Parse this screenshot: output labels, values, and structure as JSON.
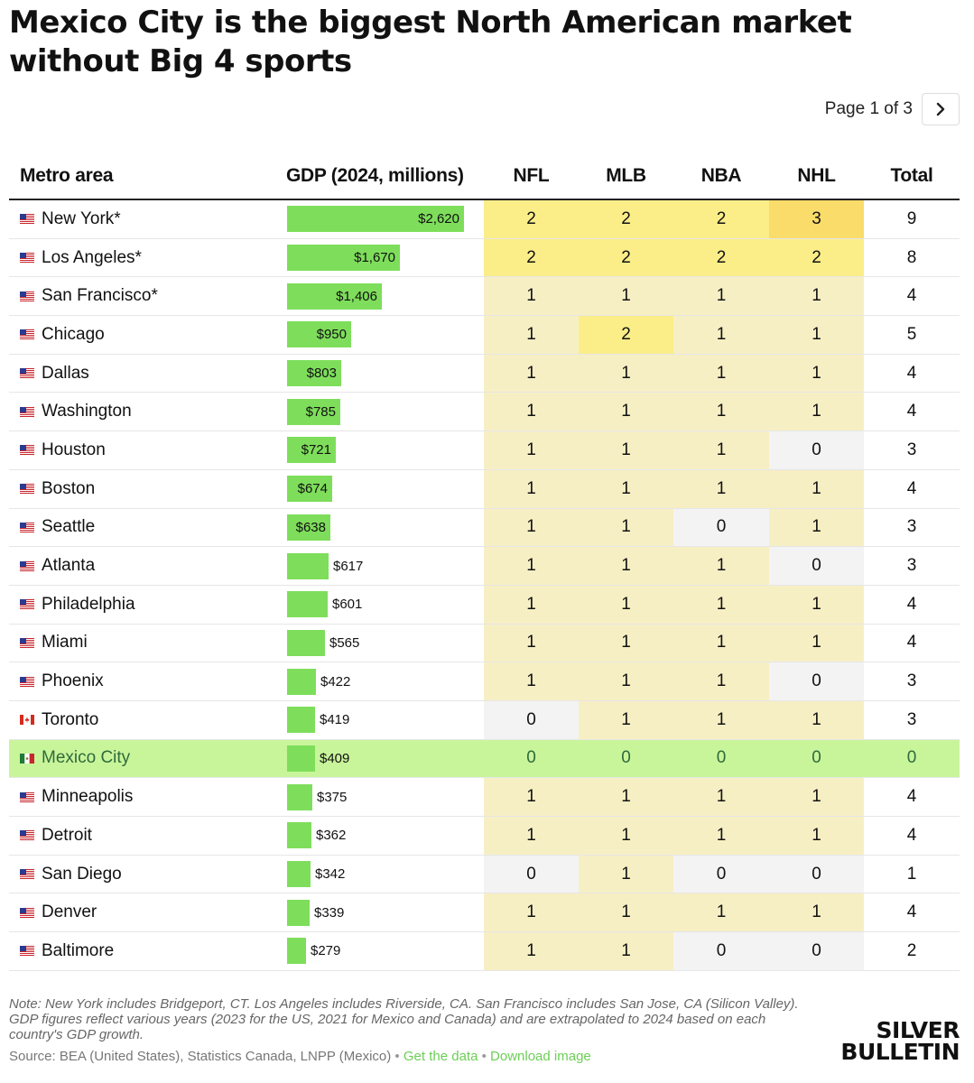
{
  "title": "Mexico City is the biggest North American market without Big 4 sports",
  "pager": {
    "text": "Page 1 of 3",
    "next_icon": "chevron-right-icon"
  },
  "colors": {
    "bar": "#7ede5b",
    "highlight_row": "#c9f59a",
    "zero": "#f3f3f3",
    "one": "#f7efc4",
    "two": "#fbee88",
    "three": "#f9dc6a"
  },
  "chart_data": {
    "type": "table",
    "title": "Mexico City is the biggest North American market without Big 4 sports",
    "columns": [
      "Metro area",
      "GDP (2024, millions)",
      "NFL",
      "MLB",
      "NBA",
      "NHL",
      "Total"
    ],
    "gdp_max": 2620,
    "rows": [
      {
        "metro": "New York*",
        "country": "us",
        "gdp": 2620,
        "gdp_label": "$2,620",
        "nfl": 2,
        "mlb": 2,
        "nba": 2,
        "nhl": 3,
        "total": 9
      },
      {
        "metro": "Los Angeles*",
        "country": "us",
        "gdp": 1670,
        "gdp_label": "$1,670",
        "nfl": 2,
        "mlb": 2,
        "nba": 2,
        "nhl": 2,
        "total": 8
      },
      {
        "metro": "San Francisco*",
        "country": "us",
        "gdp": 1406,
        "gdp_label": "$1,406",
        "nfl": 1,
        "mlb": 1,
        "nba": 1,
        "nhl": 1,
        "total": 4
      },
      {
        "metro": "Chicago",
        "country": "us",
        "gdp": 950,
        "gdp_label": "$950",
        "nfl": 1,
        "mlb": 2,
        "nba": 1,
        "nhl": 1,
        "total": 5
      },
      {
        "metro": "Dallas",
        "country": "us",
        "gdp": 803,
        "gdp_label": "$803",
        "nfl": 1,
        "mlb": 1,
        "nba": 1,
        "nhl": 1,
        "total": 4
      },
      {
        "metro": "Washington",
        "country": "us",
        "gdp": 785,
        "gdp_label": "$785",
        "nfl": 1,
        "mlb": 1,
        "nba": 1,
        "nhl": 1,
        "total": 4
      },
      {
        "metro": "Houston",
        "country": "us",
        "gdp": 721,
        "gdp_label": "$721",
        "nfl": 1,
        "mlb": 1,
        "nba": 1,
        "nhl": 0,
        "total": 3
      },
      {
        "metro": "Boston",
        "country": "us",
        "gdp": 674,
        "gdp_label": "$674",
        "nfl": 1,
        "mlb": 1,
        "nba": 1,
        "nhl": 1,
        "total": 4
      },
      {
        "metro": "Seattle",
        "country": "us",
        "gdp": 638,
        "gdp_label": "$638",
        "nfl": 1,
        "mlb": 1,
        "nba": 0,
        "nhl": 1,
        "total": 3
      },
      {
        "metro": "Atlanta",
        "country": "us",
        "gdp": 617,
        "gdp_label": "$617",
        "nfl": 1,
        "mlb": 1,
        "nba": 1,
        "nhl": 0,
        "total": 3
      },
      {
        "metro": "Philadelphia",
        "country": "us",
        "gdp": 601,
        "gdp_label": "$601",
        "nfl": 1,
        "mlb": 1,
        "nba": 1,
        "nhl": 1,
        "total": 4
      },
      {
        "metro": "Miami",
        "country": "us",
        "gdp": 565,
        "gdp_label": "$565",
        "nfl": 1,
        "mlb": 1,
        "nba": 1,
        "nhl": 1,
        "total": 4
      },
      {
        "metro": "Phoenix",
        "country": "us",
        "gdp": 422,
        "gdp_label": "$422",
        "nfl": 1,
        "mlb": 1,
        "nba": 1,
        "nhl": 0,
        "total": 3
      },
      {
        "metro": "Toronto",
        "country": "ca",
        "gdp": 419,
        "gdp_label": "$419",
        "nfl": 0,
        "mlb": 1,
        "nba": 1,
        "nhl": 1,
        "total": 3
      },
      {
        "metro": "Mexico City",
        "country": "mx",
        "gdp": 409,
        "gdp_label": "$409",
        "nfl": 0,
        "mlb": 0,
        "nba": 0,
        "nhl": 0,
        "total": 0,
        "highlight": true
      },
      {
        "metro": "Minneapolis",
        "country": "us",
        "gdp": 375,
        "gdp_label": "$375",
        "nfl": 1,
        "mlb": 1,
        "nba": 1,
        "nhl": 1,
        "total": 4
      },
      {
        "metro": "Detroit",
        "country": "us",
        "gdp": 362,
        "gdp_label": "$362",
        "nfl": 1,
        "mlb": 1,
        "nba": 1,
        "nhl": 1,
        "total": 4
      },
      {
        "metro": "San Diego",
        "country": "us",
        "gdp": 342,
        "gdp_label": "$342",
        "nfl": 0,
        "mlb": 1,
        "nba": 0,
        "nhl": 0,
        "total": 1
      },
      {
        "metro": "Denver",
        "country": "us",
        "gdp": 339,
        "gdp_label": "$339",
        "nfl": 1,
        "mlb": 1,
        "nba": 1,
        "nhl": 1,
        "total": 4
      },
      {
        "metro": "Baltimore",
        "country": "us",
        "gdp": 279,
        "gdp_label": "$279",
        "nfl": 1,
        "mlb": 1,
        "nba": 0,
        "nhl": 0,
        "total": 2
      }
    ]
  },
  "footer": {
    "note": "Note: New York includes Bridgeport, CT. Los Angeles includes Riverside, CA. San Francisco includes San Jose, CA (Silicon Valley). GDP figures reflect various years (2023 for the US, 2021 for Mexico and Canada) and are extrapolated to 2024 based on each country's GDP growth.",
    "source": "Source: BEA (United States), Statistics Canada, LNPP (Mexico)",
    "separator": "•",
    "get_data": "Get the data",
    "download": "Download image"
  },
  "logo": {
    "line1": "SILVER",
    "line2": "BULLETIN"
  }
}
